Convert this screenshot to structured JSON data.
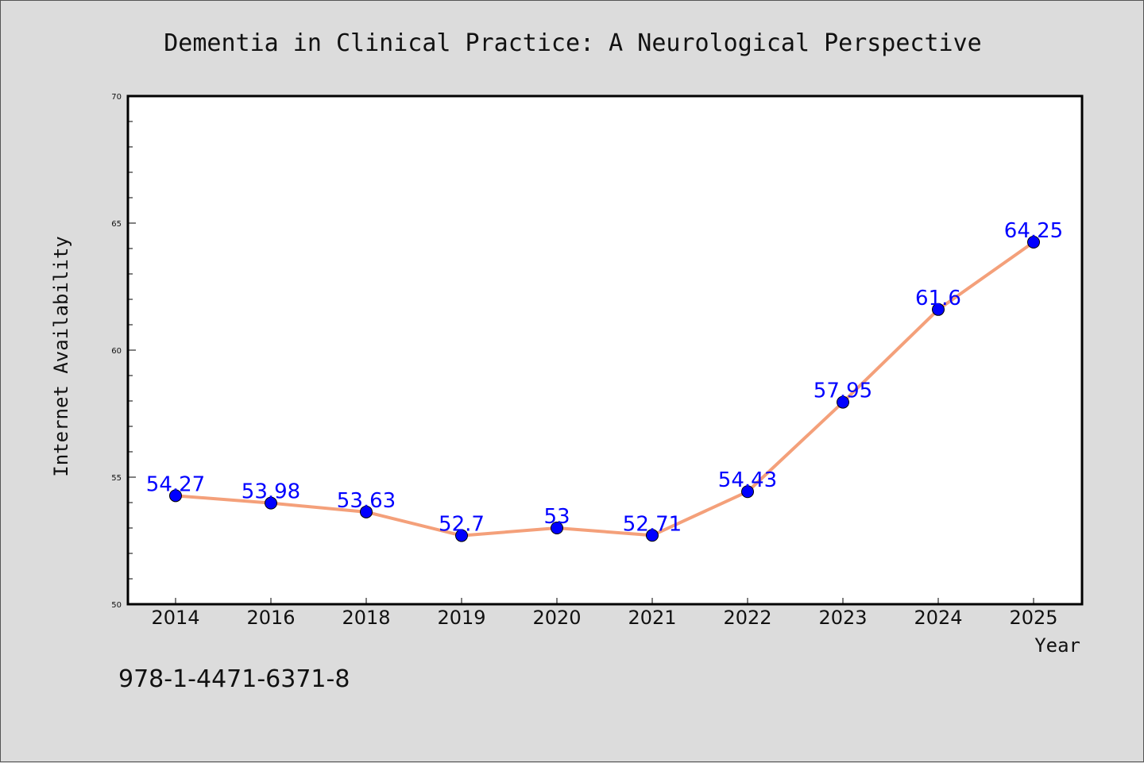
{
  "chart_data": {
    "type": "line",
    "title": "Dementia in Clinical Practice: A Neurological Perspective",
    "xlabel": "Year",
    "ylabel": "Internet Availability",
    "categories": [
      "2014",
      "2016",
      "2018",
      "2019",
      "2020",
      "2021",
      "2022",
      "2023",
      "2024",
      "2025"
    ],
    "series": [
      {
        "values": [
          54.27,
          53.98,
          53.63,
          52.7,
          53,
          52.71,
          54.43,
          57.95,
          61.6,
          64.25
        ],
        "labels": [
          "54.27",
          "53.98",
          "53.63",
          "52.7",
          "53",
          "52.71",
          "54.43",
          "57.95",
          "61.6",
          "64.25"
        ],
        "line_color": "#f4a07a",
        "marker_color": "#0000ff"
      }
    ],
    "ylim": [
      50,
      70
    ],
    "yticks": [
      "50",
      "55",
      "60",
      "65",
      "70"
    ],
    "grid": false,
    "legend": "none"
  },
  "footer": {
    "isbn": "978-1-4471-6371-8"
  },
  "colors": {
    "background": "#dcdcdc",
    "plot_area": "#ffffff",
    "line": "#f4a07a",
    "marker": "#0000ff",
    "data_label": "#0000ff"
  }
}
